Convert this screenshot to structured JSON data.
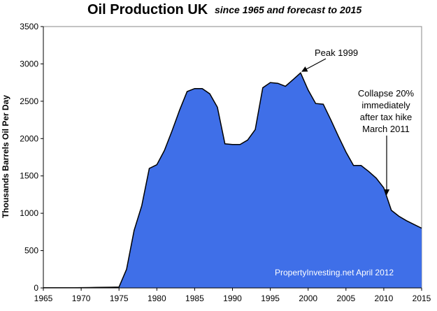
{
  "chart_data": {
    "type": "area",
    "title": "Oil Production UK",
    "subtitle": "since 1965 and forecast to 2015",
    "ylabel": "Thousands Barrels Oil Per Day",
    "xlabel": "",
    "xlim": [
      1965,
      2015
    ],
    "ylim": [
      0,
      3500
    ],
    "x_ticks": [
      "1965",
      "1970",
      "1975",
      "1980",
      "1985",
      "1990",
      "1995",
      "2000",
      "2005",
      "2010",
      "2015"
    ],
    "y_ticks": [
      "0",
      "500",
      "1000",
      "1500",
      "2000",
      "2500",
      "3000",
      "3500"
    ],
    "grid": false,
    "fill_color": "#3f6fe8",
    "x": [
      1965,
      1966,
      1967,
      1968,
      1969,
      1970,
      1971,
      1972,
      1973,
      1974,
      1975,
      1976,
      1977,
      1978,
      1979,
      1980,
      1981,
      1982,
      1983,
      1984,
      1985,
      1986,
      1987,
      1988,
      1989,
      1990,
      1991,
      1992,
      1993,
      1994,
      1995,
      1996,
      1997,
      1998,
      1999,
      2000,
      2001,
      2002,
      2003,
      2004,
      2005,
      2006,
      2007,
      2008,
      2009,
      2010,
      2011,
      2012,
      2013,
      2014,
      2015
    ],
    "values": [
      2,
      2,
      2,
      2,
      2,
      4,
      5,
      7,
      8,
      9,
      12,
      250,
      770,
      1100,
      1600,
      1650,
      1840,
      2100,
      2380,
      2630,
      2670,
      2670,
      2600,
      2420,
      1930,
      1920,
      1920,
      1980,
      2120,
      2680,
      2750,
      2740,
      2700,
      2790,
      2880,
      2650,
      2470,
      2460,
      2250,
      2030,
      1820,
      1640,
      1640,
      1560,
      1470,
      1340,
      1040,
      960,
      900,
      850,
      800
    ],
    "annotations": [
      {
        "text": "Peak 1999",
        "x": 1999,
        "y": 2880
      },
      {
        "text_lines": [
          "Collapse 20%",
          "immediately",
          "after tax hike",
          "March 2011"
        ],
        "x": 2011,
        "y": 1340
      }
    ],
    "credit": "PropertyInvesting.net  April 2012"
  }
}
